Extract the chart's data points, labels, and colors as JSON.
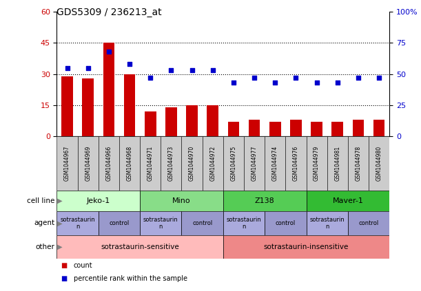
{
  "title": "GDS5309 / 236213_at",
  "samples": [
    "GSM1044967",
    "GSM1044969",
    "GSM1044966",
    "GSM1044968",
    "GSM1044971",
    "GSM1044973",
    "GSM1044970",
    "GSM1044972",
    "GSM1044975",
    "GSM1044977",
    "GSM1044974",
    "GSM1044976",
    "GSM1044979",
    "GSM1044981",
    "GSM1044978",
    "GSM1044980"
  ],
  "bar_values": [
    29,
    28,
    45,
    30,
    12,
    14,
    15,
    15,
    7,
    8,
    7,
    8,
    7,
    7,
    8,
    8
  ],
  "percentile_values": [
    55,
    55,
    68,
    58,
    47,
    53,
    53,
    53,
    43,
    47,
    43,
    47,
    43,
    43,
    47,
    47
  ],
  "bar_color": "#cc0000",
  "dot_color": "#0000cc",
  "ylim_left": [
    0,
    60
  ],
  "ylim_right": [
    0,
    100
  ],
  "yticks_left": [
    0,
    15,
    30,
    45,
    60
  ],
  "ytick_labels_left": [
    "0",
    "15",
    "30",
    "45",
    "60"
  ],
  "yticks_right": [
    0,
    25,
    50,
    75,
    100
  ],
  "ytick_labels_right": [
    "0",
    "25",
    "50",
    "75",
    "100%"
  ],
  "cell_lines": [
    {
      "label": "Jeko-1",
      "start": 0,
      "end": 4,
      "color": "#ccffcc"
    },
    {
      "label": "Mino",
      "start": 4,
      "end": 8,
      "color": "#88dd88"
    },
    {
      "label": "Z138",
      "start": 8,
      "end": 12,
      "color": "#55cc55"
    },
    {
      "label": "Maver-1",
      "start": 12,
      "end": 16,
      "color": "#33bb33"
    }
  ],
  "agents": [
    {
      "label": "sotrastaurin",
      "start": 0,
      "end": 2,
      "color": "#aaaadd"
    },
    {
      "label": "control",
      "start": 2,
      "end": 4,
      "color": "#9999cc"
    },
    {
      "label": "sotrastaurin",
      "start": 4,
      "end": 6,
      "color": "#aaaadd"
    },
    {
      "label": "control",
      "start": 6,
      "end": 8,
      "color": "#9999cc"
    },
    {
      "label": "sotrastaurin",
      "start": 8,
      "end": 10,
      "color": "#aaaadd"
    },
    {
      "label": "control",
      "start": 10,
      "end": 12,
      "color": "#9999cc"
    },
    {
      "label": "sotrastaurin",
      "start": 12,
      "end": 14,
      "color": "#aaaadd"
    },
    {
      "label": "control",
      "start": 14,
      "end": 16,
      "color": "#9999cc"
    }
  ],
  "others": [
    {
      "label": "sotrastaurin-sensitive",
      "start": 0,
      "end": 8,
      "color": "#ffbbbb"
    },
    {
      "label": "sotrastaurin-insensitive",
      "start": 8,
      "end": 16,
      "color": "#ee8888"
    }
  ],
  "row_labels": [
    "cell line",
    "agent",
    "other"
  ],
  "legend_items": [
    {
      "color": "#cc0000",
      "label": "count"
    },
    {
      "color": "#0000cc",
      "label": "percentile rank within the sample"
    }
  ],
  "background_color": "#ffffff",
  "tick_label_color_left": "#cc0000",
  "tick_label_color_right": "#0000cc",
  "sample_box_color": "#cccccc"
}
